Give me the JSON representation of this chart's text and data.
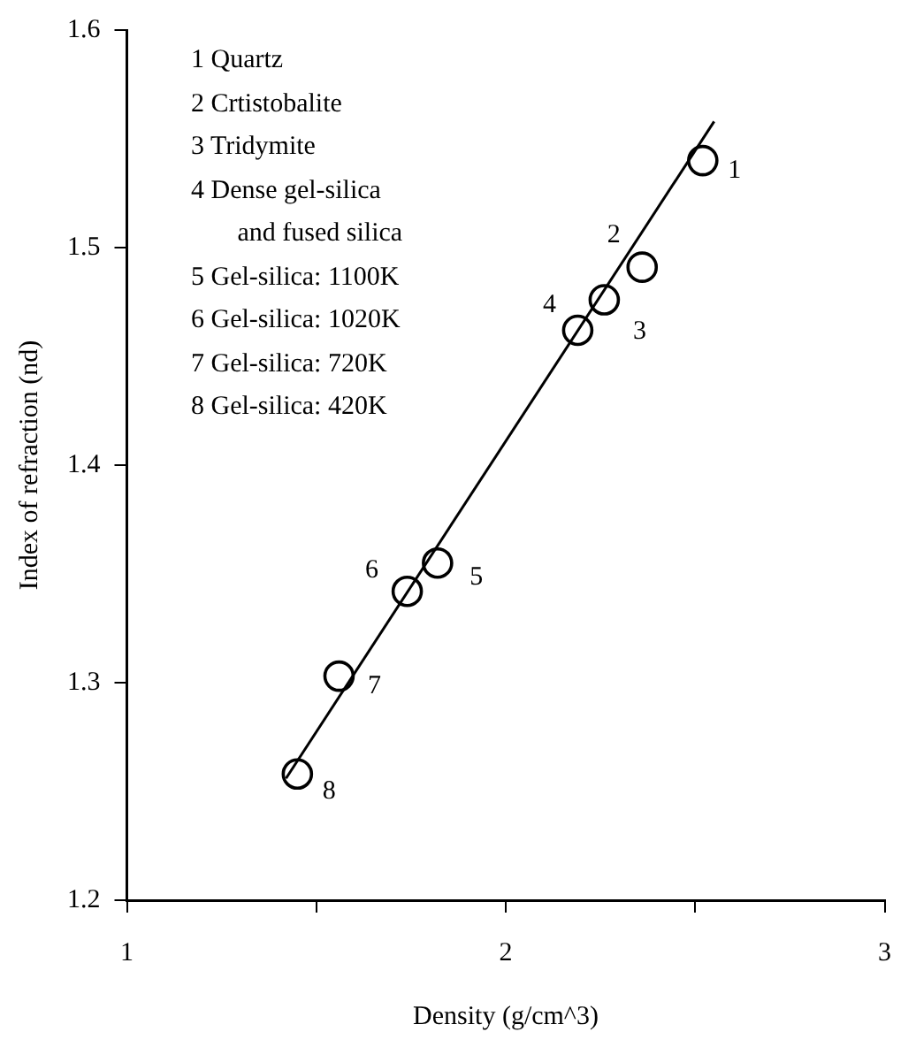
{
  "chart_data": {
    "type": "scatter",
    "xlabel": "Density (g/cm^3)",
    "ylabel": "Index of refraction (nd)",
    "x": [
      2.52,
      2.36,
      2.26,
      2.19,
      1.82,
      1.74,
      1.56,
      1.45
    ],
    "series": [
      {
        "color": "#000000",
        "marker": "circle",
        "values": [
          1.54,
          1.491,
          1.476,
          1.462,
          1.355,
          1.342,
          1.303,
          1.258
        ]
      },
      {
        "type": "line",
        "color": "#000000",
        "marker": "none",
        "line_style": "solid",
        "x": [
          1.42,
          2.55
        ],
        "values": [
          1.256,
          1.558
        ]
      }
    ],
    "xlim": [
      1,
      3
    ],
    "xticks": [
      1,
      {
        "value": 1.5,
        "label": null
      },
      2,
      {
        "value": 2.5,
        "label": null
      },
      3
    ],
    "ylim": [
      1.2,
      1.6
    ],
    "yticks": [
      1.2,
      1.3,
      1.4,
      1.5,
      1.6
    ],
    "grid": false,
    "legend": false,
    "annotations": [
      "1 Quartz",
      "2 Crtistobalite",
      "3 Tridymite",
      "4 Dense gel-silica\nand fused silica",
      "5 Gel-silica: 1100K",
      "6 Gel-silica: 1020K",
      "7 Gel-silica: 720K",
      "8 Gel-silica: 420K",
      {
        "text": "1",
        "x": 2.52,
        "y": 1.54
      },
      {
        "text": "2",
        "x": 2.36,
        "y": 1.491
      },
      {
        "text": "3",
        "x": 2.26,
        "y": 1.476
      },
      {
        "text": "4",
        "x": 2.19,
        "y": 1.462
      },
      {
        "text": "5",
        "x": 1.82,
        "y": 1.355
      },
      {
        "text": "6",
        "x": 1.74,
        "y": 1.342
      },
      {
        "text": "7",
        "x": 1.56,
        "y": 1.303
      },
      {
        "text": "8",
        "x": 1.45,
        "y": 1.258
      }
    ]
  }
}
